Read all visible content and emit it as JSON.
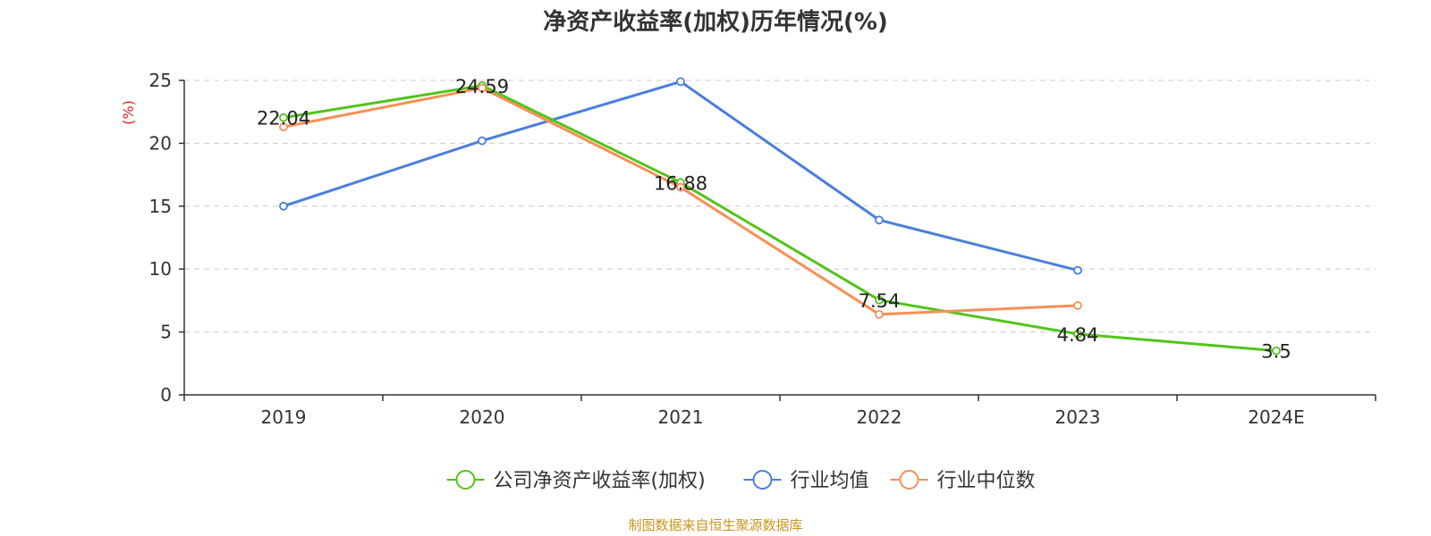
{
  "chart_data": {
    "type": "line",
    "title": "净资产收益率(加权)历年情况(%)",
    "ylabel": "(%)",
    "xlabel": "",
    "categories": [
      "2019",
      "2020",
      "2021",
      "2022",
      "2023",
      "2024E"
    ],
    "ylim": [
      0,
      25
    ],
    "yticks": [
      0,
      5,
      10,
      15,
      20,
      25
    ],
    "grid": true,
    "legend_position": "bottom",
    "series": [
      {
        "name": "公司净资产收益率(加权)",
        "color": "#52c41a",
        "values": [
          22.04,
          24.59,
          16.88,
          7.54,
          4.84,
          3.5
        ],
        "labels": [
          "22.04",
          "24.59",
          "16.88",
          "7.54",
          "4.84",
          "3.5"
        ]
      },
      {
        "name": "行业均值",
        "color": "#4a7ede",
        "values": [
          15.0,
          20.2,
          24.9,
          13.9,
          9.9,
          null
        ]
      },
      {
        "name": "行业中位数",
        "color": "#f78f56",
        "values": [
          21.3,
          24.4,
          16.5,
          6.4,
          7.1,
          null
        ]
      }
    ]
  },
  "source_note": "制图数据来自恒生聚源数据库",
  "colors": {
    "ylabel": "#e02020",
    "source": "#c8961e",
    "axis": "#333333",
    "grid": "#cccccc"
  }
}
